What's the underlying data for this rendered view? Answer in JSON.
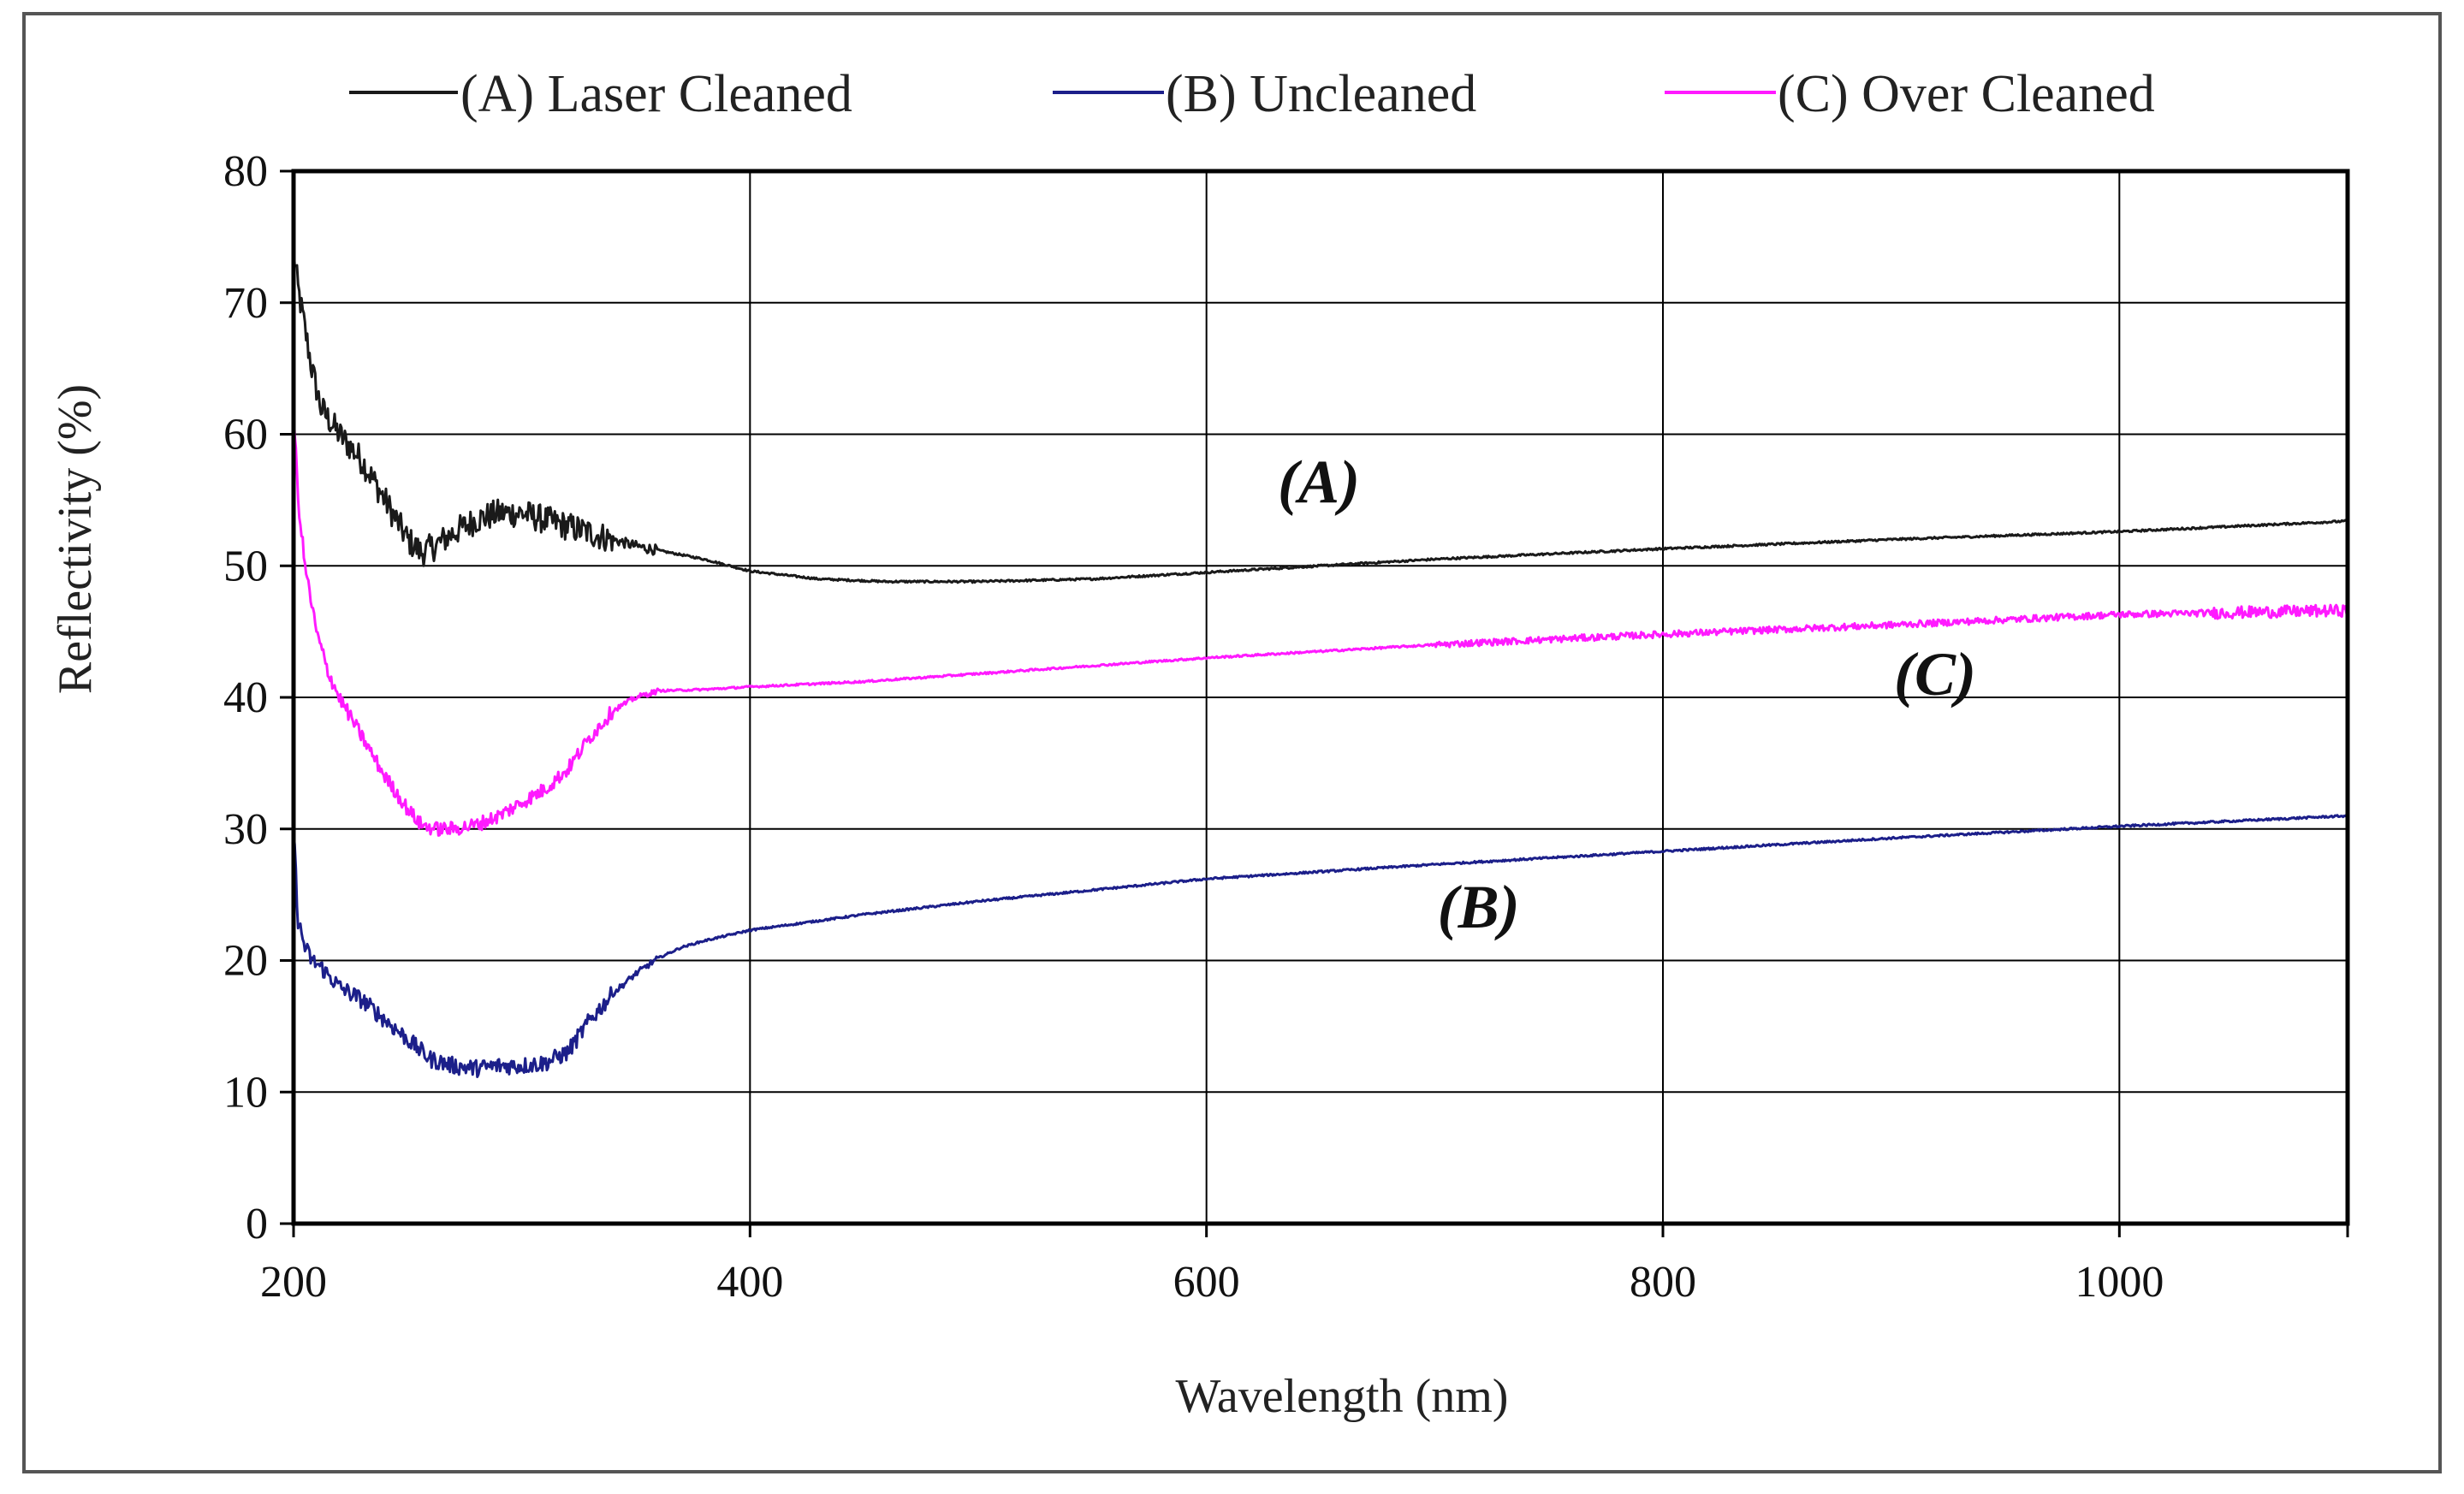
{
  "chart_data": {
    "type": "line",
    "title": "",
    "xlabel": "Wavelength (nm)",
    "ylabel": "Reflectivity (%)",
    "xlim": [
      200,
      1100
    ],
    "ylim": [
      0,
      80
    ],
    "xticks": [
      200,
      400,
      600,
      800,
      1000
    ],
    "yticks": [
      0,
      10,
      20,
      30,
      40,
      50,
      60,
      70,
      80
    ],
    "grid": true,
    "legend_position": "top",
    "series": [
      {
        "name": "(A) Laser Cleaned",
        "color": "#1a1a1a",
        "noise": 1.0,
        "x": [
          200,
          202,
          205,
          208,
          212,
          220,
          230,
          240,
          250,
          256,
          262,
          270,
          280,
          290,
          300,
          310,
          320,
          330,
          350,
          380,
          400,
          430,
          460,
          500,
          550,
          600,
          650,
          700,
          800,
          900,
          1000,
          1100
        ],
        "y": [
          74,
          71,
          68,
          65,
          62,
          60,
          58,
          55,
          52,
          51,
          51.5,
          52.5,
          53.5,
          54,
          54,
          53.5,
          53,
          52.5,
          51.5,
          50.5,
          49.6,
          49,
          48.8,
          48.8,
          49,
          49.5,
          50,
          50.5,
          51.3,
          52,
          52.6,
          53.4
        ]
      },
      {
        "name": "(B) Uncleaned",
        "color": "#1c1f8a",
        "noise": 0.6,
        "x": [
          200,
          202,
          205,
          208,
          212,
          220,
          230,
          240,
          250,
          260,
          270,
          280,
          290,
          300,
          310,
          320,
          330,
          340,
          350,
          360,
          370,
          380,
          400,
          450,
          500,
          600,
          700,
          800,
          900,
          1000,
          1100
        ],
        "y": [
          30,
          23,
          21,
          20,
          19.5,
          18,
          17,
          15.5,
          14,
          12.5,
          12,
          11.8,
          12,
          12,
          12.2,
          13,
          15.5,
          17.5,
          19,
          20.2,
          21,
          21.5,
          22.3,
          23.5,
          24.5,
          26.2,
          27.3,
          28.3,
          29.3,
          30.2,
          31
        ]
      },
      {
        "name": "(C) Over Cleaned",
        "color": "#ff1aff",
        "noise": 0.5,
        "x": [
          200,
          202,
          205,
          210,
          215,
          220,
          230,
          240,
          250,
          256,
          262,
          270,
          280,
          290,
          300,
          310,
          320,
          330,
          340,
          350,
          360,
          380,
          400,
          450,
          500,
          600,
          700,
          800,
          900,
          1000,
          1100
        ],
        "y": [
          62,
          55,
          50,
          45,
          42,
          40,
          37,
          34,
          31.5,
          30.3,
          30,
          30,
          30.3,
          31,
          32,
          33,
          34.5,
          37,
          39,
          40,
          40.5,
          40.6,
          40.8,
          41.2,
          41.8,
          43,
          44,
          44.8,
          45.5,
          46.3,
          46.6
        ]
      }
    ],
    "annotations": [
      {
        "text": "(A)",
        "x": 650,
        "y": 54.8
      },
      {
        "text": "(C)",
        "x": 920,
        "y": 40.2
      },
      {
        "text": "(B)",
        "x": 720,
        "y": 22.5
      }
    ]
  }
}
